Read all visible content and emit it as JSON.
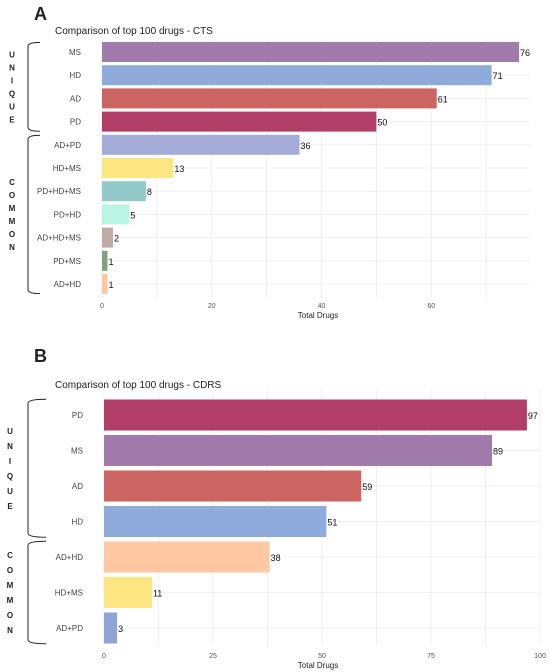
{
  "colors": {
    "MS": "#a07bab",
    "HD": "#8fabdb",
    "AD": "#cd6464",
    "PD": "#b13e66",
    "AD+PD": "#a3acd7",
    "HD+MS": "#fde582",
    "PD+HD+MS": "#92c9c9",
    "PD+HD": "#b8f5e2",
    "AD+HD+MS": "#bfaca4",
    "PD+MS": "#7fa27f",
    "AD+HD": "#ffc8a3",
    "AD+PD_B": "#8fa3d6",
    "grid": "#ebebeb"
  },
  "chart_data": [
    {
      "panel_label": "A",
      "type": "bar",
      "orientation": "horizontal",
      "title": "Comparison of top 100 drugs - CTS",
      "xlabel": "Total Drugs",
      "ylabel": "",
      "xlim": [
        0,
        78
      ],
      "xticks": [
        0,
        20,
        40,
        60
      ],
      "grid": true,
      "categories": [
        "MS",
        "HD",
        "AD",
        "PD",
        "AD+PD",
        "HD+MS",
        "PD+HD+MS",
        "PD+HD",
        "AD+HD+MS",
        "PD+MS",
        "AD+HD"
      ],
      "values": [
        76,
        71,
        61,
        50,
        36,
        13,
        8,
        5,
        2,
        1,
        1
      ],
      "groups": [
        {
          "label": "UNIQUE",
          "count": 4
        },
        {
          "label": "COMMON",
          "count": 7
        }
      ]
    },
    {
      "panel_label": "B",
      "type": "bar",
      "orientation": "horizontal",
      "title": "Comparison of top 100 drugs - CDRS",
      "xlabel": "Total Drugs",
      "ylabel": "",
      "xlim": [
        0,
        100
      ],
      "xticks": [
        0,
        25,
        50,
        75,
        100
      ],
      "grid": true,
      "categories": [
        "PD",
        "MS",
        "AD",
        "HD",
        "AD+HD",
        "HD+MS",
        "AD+PD"
      ],
      "values": [
        97,
        89,
        59,
        51,
        38,
        11,
        3
      ],
      "groups": [
        {
          "label": "UNIQUE",
          "count": 4
        },
        {
          "label": "COMMON",
          "count": 3
        }
      ]
    }
  ]
}
